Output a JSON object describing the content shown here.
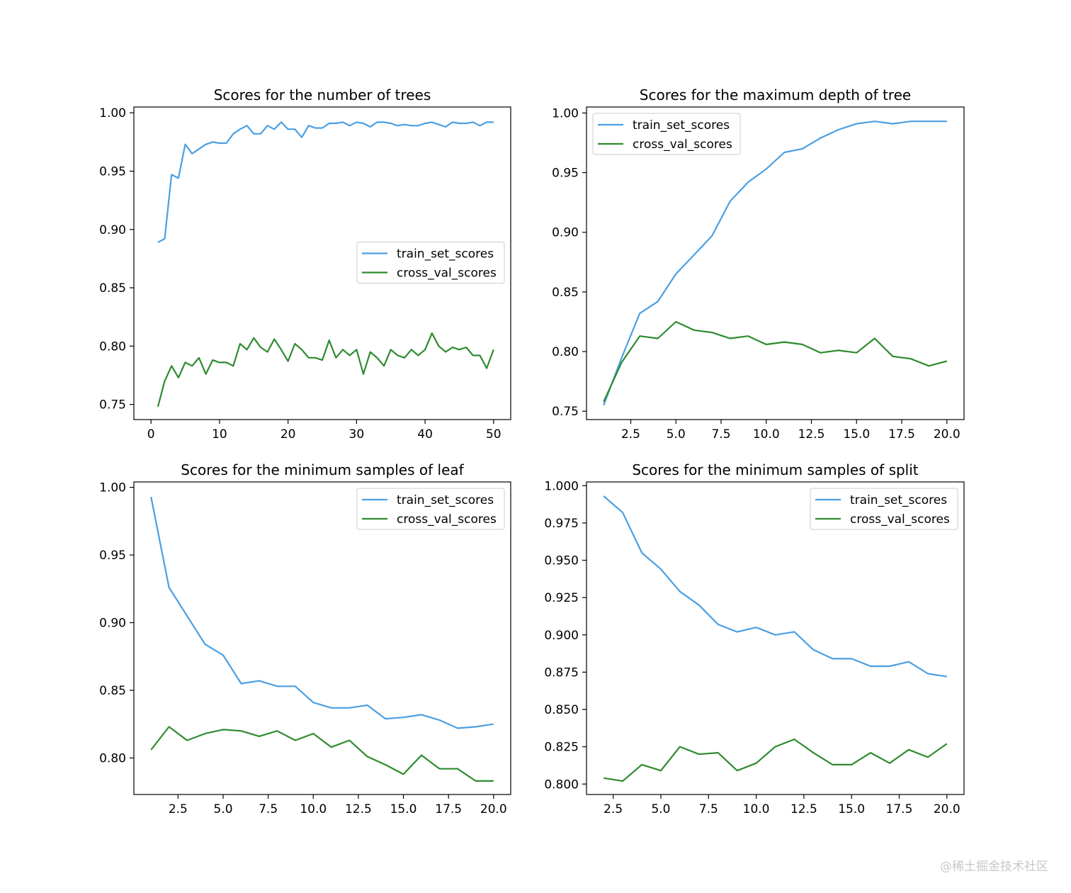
{
  "colors": {
    "train": "#4a9fe3",
    "cv": "#2e8b2e",
    "axis": "#000000",
    "legend_border": "#cccccc"
  },
  "watermark": "@稀土掘金技术社区",
  "chart_data": [
    {
      "type": "line",
      "title": "Scores for the number of trees",
      "xlabel": "",
      "ylabel": "",
      "xlim": [
        -2.5,
        52.5
      ],
      "ylim": [
        0.737,
        1.005
      ],
      "xticks": [
        0,
        10,
        20,
        30,
        40,
        50
      ],
      "xtick_labels": [
        "0",
        "10",
        "20",
        "30",
        "40",
        "50"
      ],
      "yticks": [
        0.75,
        0.8,
        0.85,
        0.9,
        0.95,
        1.0
      ],
      "ytick_labels": [
        "0.75",
        "0.80",
        "0.85",
        "0.90",
        "0.95",
        "1.00"
      ],
      "legend": "center-right",
      "x": [
        1,
        2,
        3,
        4,
        5,
        6,
        7,
        8,
        9,
        10,
        11,
        12,
        13,
        14,
        15,
        16,
        17,
        18,
        19,
        20,
        21,
        22,
        23,
        24,
        25,
        26,
        27,
        28,
        29,
        30,
        31,
        32,
        33,
        34,
        35,
        36,
        37,
        38,
        39,
        40,
        41,
        42,
        43,
        44,
        45,
        46,
        47,
        48,
        49,
        50
      ],
      "series": [
        {
          "name": "train_set_scores",
          "values": [
            0.889,
            0.892,
            0.947,
            0.944,
            0.973,
            0.965,
            0.969,
            0.973,
            0.975,
            0.974,
            0.974,
            0.982,
            0.986,
            0.989,
            0.982,
            0.982,
            0.989,
            0.986,
            0.992,
            0.986,
            0.986,
            0.979,
            0.989,
            0.987,
            0.987,
            0.991,
            0.991,
            0.992,
            0.989,
            0.992,
            0.991,
            0.988,
            0.992,
            0.992,
            0.991,
            0.989,
            0.99,
            0.989,
            0.989,
            0.991,
            0.992,
            0.99,
            0.988,
            0.992,
            0.991,
            0.991,
            0.992,
            0.989,
            0.992,
            0.992
          ]
        },
        {
          "name": "cross_val_scores",
          "values": [
            0.748,
            0.77,
            0.783,
            0.773,
            0.786,
            0.783,
            0.79,
            0.776,
            0.788,
            0.786,
            0.786,
            0.783,
            0.802,
            0.797,
            0.807,
            0.799,
            0.795,
            0.806,
            0.797,
            0.787,
            0.802,
            0.797,
            0.79,
            0.79,
            0.788,
            0.805,
            0.79,
            0.797,
            0.792,
            0.797,
            0.776,
            0.795,
            0.79,
            0.783,
            0.797,
            0.792,
            0.79,
            0.797,
            0.792,
            0.797,
            0.811,
            0.8,
            0.795,
            0.799,
            0.797,
            0.799,
            0.792,
            0.792,
            0.781,
            0.797
          ]
        }
      ]
    },
    {
      "type": "line",
      "title": "Scores for the maximum depth of tree",
      "xlabel": "",
      "ylabel": "",
      "xlim": [
        0.05,
        20.95
      ],
      "ylim": [
        0.743,
        1.005
      ],
      "xticks": [
        2.5,
        5.0,
        7.5,
        10.0,
        12.5,
        15.0,
        17.5,
        20.0
      ],
      "xtick_labels": [
        "2.5",
        "5.0",
        "7.5",
        "10.0",
        "12.5",
        "15.0",
        "17.5",
        "20.0"
      ],
      "yticks": [
        0.75,
        0.8,
        0.85,
        0.9,
        0.95,
        1.0
      ],
      "ytick_labels": [
        "0.75",
        "0.80",
        "0.85",
        "0.90",
        "0.95",
        "1.00"
      ],
      "legend": "top-left",
      "x": [
        1,
        2,
        3,
        4,
        5,
        6,
        7,
        8,
        9,
        10,
        11,
        12,
        13,
        14,
        15,
        16,
        17,
        18,
        19,
        20
      ],
      "series": [
        {
          "name": "train_set_scores",
          "values": [
            0.755,
            0.795,
            0.832,
            0.842,
            0.865,
            0.881,
            0.897,
            0.926,
            0.942,
            0.953,
            0.967,
            0.97,
            0.979,
            0.986,
            0.991,
            0.993,
            0.991,
            0.993,
            0.993,
            0.993
          ]
        },
        {
          "name": "cross_val_scores",
          "values": [
            0.758,
            0.791,
            0.813,
            0.811,
            0.825,
            0.818,
            0.816,
            0.811,
            0.813,
            0.806,
            0.808,
            0.806,
            0.799,
            0.801,
            0.799,
            0.811,
            0.796,
            0.794,
            0.788,
            0.792
          ]
        }
      ]
    },
    {
      "type": "line",
      "title": "Scores for the minimum samples of leaf",
      "xlabel": "",
      "ylabel": "",
      "xlim": [
        0.05,
        20.95
      ],
      "ylim": [
        0.773,
        1.004
      ],
      "xticks": [
        2.5,
        5.0,
        7.5,
        10.0,
        12.5,
        15.0,
        17.5,
        20.0
      ],
      "xtick_labels": [
        "2.5",
        "5.0",
        "7.5",
        "10.0",
        "12.5",
        "15.0",
        "17.5",
        "20.0"
      ],
      "yticks": [
        0.8,
        0.85,
        0.9,
        0.95,
        1.0
      ],
      "ytick_labels": [
        "0.80",
        "0.85",
        "0.90",
        "0.95",
        "1.00"
      ],
      "legend": "top-right",
      "x": [
        1,
        2,
        3,
        4,
        5,
        6,
        7,
        8,
        9,
        10,
        11,
        12,
        13,
        14,
        15,
        16,
        17,
        18,
        19,
        20
      ],
      "series": [
        {
          "name": "train_set_scores",
          "values": [
            0.993,
            0.926,
            0.905,
            0.884,
            0.876,
            0.855,
            0.857,
            0.853,
            0.853,
            0.841,
            0.837,
            0.837,
            0.839,
            0.829,
            0.83,
            0.832,
            0.828,
            0.822,
            0.823,
            0.825
          ]
        },
        {
          "name": "cross_val_scores",
          "values": [
            0.806,
            0.823,
            0.813,
            0.818,
            0.821,
            0.82,
            0.816,
            0.82,
            0.813,
            0.818,
            0.808,
            0.813,
            0.801,
            0.795,
            0.788,
            0.802,
            0.792,
            0.792,
            0.783,
            0.783
          ]
        }
      ]
    },
    {
      "type": "line",
      "title": "Scores for the minimum samples of split",
      "xlabel": "",
      "ylabel": "",
      "xlim": [
        1.1,
        20.9
      ],
      "ylim": [
        0.793,
        1.0025
      ],
      "xticks": [
        2.5,
        5.0,
        7.5,
        10.0,
        12.5,
        15.0,
        17.5,
        20.0
      ],
      "xtick_labels": [
        "2.5",
        "5.0",
        "7.5",
        "10.0",
        "12.5",
        "15.0",
        "17.5",
        "20.0"
      ],
      "yticks": [
        0.8,
        0.825,
        0.85,
        0.875,
        0.9,
        0.925,
        0.95,
        0.975,
        1.0
      ],
      "ytick_labels": [
        "0.800",
        "0.825",
        "0.850",
        "0.875",
        "0.900",
        "0.925",
        "0.950",
        "0.975",
        "1.000"
      ],
      "legend": "top-right",
      "x": [
        2,
        3,
        4,
        5,
        6,
        7,
        8,
        9,
        10,
        11,
        12,
        13,
        14,
        15,
        16,
        17,
        18,
        19,
        20
      ],
      "series": [
        {
          "name": "train_set_scores",
          "values": [
            0.993,
            0.982,
            0.955,
            0.944,
            0.929,
            0.92,
            0.907,
            0.902,
            0.905,
            0.9,
            0.902,
            0.89,
            0.884,
            0.884,
            0.879,
            0.879,
            0.882,
            0.874,
            0.872
          ]
        },
        {
          "name": "cross_val_scores",
          "values": [
            0.804,
            0.802,
            0.813,
            0.809,
            0.825,
            0.82,
            0.821,
            0.809,
            0.814,
            0.825,
            0.83,
            0.821,
            0.813,
            0.813,
            0.821,
            0.814,
            0.823,
            0.818,
            0.827
          ]
        }
      ]
    }
  ]
}
